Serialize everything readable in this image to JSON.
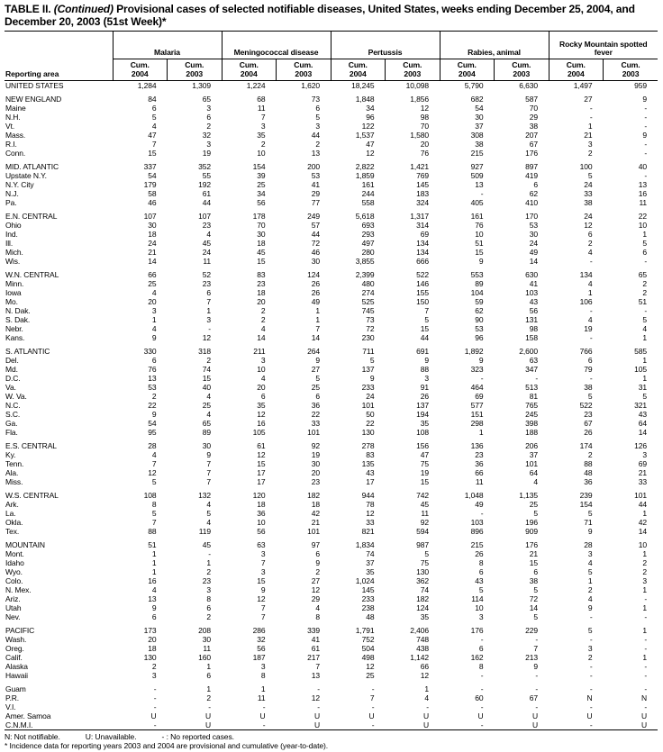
{
  "title": {
    "prefix": "TABLE II. ",
    "continued": "(Continued)",
    "rest": " Provisional cases of selected notifiable diseases, United States, weeks ending December 25, 2004, and December 20, 2003 (51st Week)*"
  },
  "header": {
    "reporting_area": "Reporting area",
    "groups": [
      {
        "label": "Malaria"
      },
      {
        "label": "Meningococcal disease"
      },
      {
        "label": "Pertussis"
      },
      {
        "label": "Rabies, animal"
      },
      {
        "label": "Rocky Mountain spotted fever"
      }
    ],
    "subcolumns": [
      "Cum.\n2004",
      "Cum.\n2003"
    ]
  },
  "table": {
    "sections": [
      {
        "rows": [
          [
            "UNITED STATES",
            "1,284",
            "1,309",
            "1,224",
            "1,620",
            "18,245",
            "10,098",
            "5,790",
            "6,630",
            "1,497",
            "959"
          ]
        ]
      },
      {
        "rows": [
          [
            "NEW ENGLAND",
            "84",
            "65",
            "68",
            "73",
            "1,848",
            "1,856",
            "682",
            "587",
            "27",
            "9"
          ],
          [
            "Maine",
            "6",
            "3",
            "11",
            "6",
            "34",
            "12",
            "54",
            "70",
            "-",
            "-"
          ],
          [
            "N.H.",
            "5",
            "6",
            "7",
            "5",
            "96",
            "98",
            "30",
            "29",
            "-",
            "-"
          ],
          [
            "Vt.",
            "4",
            "2",
            "3",
            "3",
            "122",
            "70",
            "37",
            "38",
            "1",
            "-"
          ],
          [
            "Mass.",
            "47",
            "32",
            "35",
            "44",
            "1,537",
            "1,580",
            "308",
            "207",
            "21",
            "9"
          ],
          [
            "R.I.",
            "7",
            "3",
            "2",
            "2",
            "47",
            "20",
            "38",
            "67",
            "3",
            "-"
          ],
          [
            "Conn.",
            "15",
            "19",
            "10",
            "13",
            "12",
            "76",
            "215",
            "176",
            "2",
            "-"
          ]
        ]
      },
      {
        "rows": [
          [
            "MID. ATLANTIC",
            "337",
            "352",
            "154",
            "200",
            "2,822",
            "1,421",
            "927",
            "897",
            "100",
            "40"
          ],
          [
            "Upstate N.Y.",
            "54",
            "55",
            "39",
            "53",
            "1,859",
            "769",
            "509",
            "419",
            "5",
            "-"
          ],
          [
            "N.Y. City",
            "179",
            "192",
            "25",
            "41",
            "161",
            "145",
            "13",
            "6",
            "24",
            "13"
          ],
          [
            "N.J.",
            "58",
            "61",
            "34",
            "29",
            "244",
            "183",
            "-",
            "62",
            "33",
            "16"
          ],
          [
            "Pa.",
            "46",
            "44",
            "56",
            "77",
            "558",
            "324",
            "405",
            "410",
            "38",
            "11"
          ]
        ]
      },
      {
        "rows": [
          [
            "E.N. CENTRAL",
            "107",
            "107",
            "178",
            "249",
            "5,618",
            "1,317",
            "161",
            "170",
            "24",
            "22"
          ],
          [
            "Ohio",
            "30",
            "23",
            "70",
            "57",
            "693",
            "314",
            "76",
            "53",
            "12",
            "10"
          ],
          [
            "Ind.",
            "18",
            "4",
            "30",
            "44",
            "293",
            "69",
            "10",
            "30",
            "6",
            "1"
          ],
          [
            "Ill.",
            "24",
            "45",
            "18",
            "72",
            "497",
            "134",
            "51",
            "24",
            "2",
            "5"
          ],
          [
            "Mich.",
            "21",
            "24",
            "45",
            "46",
            "280",
            "134",
            "15",
            "49",
            "4",
            "6"
          ],
          [
            "Wis.",
            "14",
            "11",
            "15",
            "30",
            "3,855",
            "666",
            "9",
            "14",
            "-",
            "-"
          ]
        ]
      },
      {
        "rows": [
          [
            "W.N. CENTRAL",
            "66",
            "52",
            "83",
            "124",
            "2,399",
            "522",
            "553",
            "630",
            "134",
            "65"
          ],
          [
            "Minn.",
            "25",
            "23",
            "23",
            "26",
            "480",
            "146",
            "89",
            "41",
            "4",
            "2"
          ],
          [
            "Iowa",
            "4",
            "6",
            "18",
            "26",
            "274",
            "155",
            "104",
            "103",
            "1",
            "2"
          ],
          [
            "Mo.",
            "20",
            "7",
            "20",
            "49",
            "525",
            "150",
            "59",
            "43",
            "106",
            "51"
          ],
          [
            "N. Dak.",
            "3",
            "1",
            "2",
            "1",
            "745",
            "7",
            "62",
            "56",
            "-",
            "-"
          ],
          [
            "S. Dak.",
            "1",
            "3",
            "2",
            "1",
            "73",
            "5",
            "90",
            "131",
            "4",
            "5"
          ],
          [
            "Nebr.",
            "4",
            "-",
            "4",
            "7",
            "72",
            "15",
            "53",
            "98",
            "19",
            "4"
          ],
          [
            "Kans.",
            "9",
            "12",
            "14",
            "14",
            "230",
            "44",
            "96",
            "158",
            "-",
            "1"
          ]
        ]
      },
      {
        "rows": [
          [
            "S. ATLANTIC",
            "330",
            "318",
            "211",
            "264",
            "711",
            "691",
            "1,892",
            "2,600",
            "766",
            "585"
          ],
          [
            "Del.",
            "6",
            "2",
            "3",
            "9",
            "5",
            "9",
            "9",
            "63",
            "6",
            "1"
          ],
          [
            "Md.",
            "76",
            "74",
            "10",
            "27",
            "137",
            "88",
            "323",
            "347",
            "79",
            "105"
          ],
          [
            "D.C.",
            "13",
            "15",
            "4",
            "5",
            "9",
            "3",
            "-",
            "-",
            "-",
            "1"
          ],
          [
            "Va.",
            "53",
            "40",
            "20",
            "25",
            "233",
            "91",
            "464",
            "513",
            "38",
            "31"
          ],
          [
            "W. Va.",
            "2",
            "4",
            "6",
            "6",
            "24",
            "26",
            "69",
            "81",
            "5",
            "5"
          ],
          [
            "N.C.",
            "22",
            "25",
            "35",
            "36",
            "101",
            "137",
            "577",
            "765",
            "522",
            "321"
          ],
          [
            "S.C.",
            "9",
            "4",
            "12",
            "22",
            "50",
            "194",
            "151",
            "245",
            "23",
            "43"
          ],
          [
            "Ga.",
            "54",
            "65",
            "16",
            "33",
            "22",
            "35",
            "298",
            "398",
            "67",
            "64"
          ],
          [
            "Fla.",
            "95",
            "89",
            "105",
            "101",
            "130",
            "108",
            "1",
            "188",
            "26",
            "14"
          ]
        ]
      },
      {
        "rows": [
          [
            "E.S. CENTRAL",
            "28",
            "30",
            "61",
            "92",
            "278",
            "156",
            "136",
            "206",
            "174",
            "126"
          ],
          [
            "Ky.",
            "4",
            "9",
            "12",
            "19",
            "83",
            "47",
            "23",
            "37",
            "2",
            "3"
          ],
          [
            "Tenn.",
            "7",
            "7",
            "15",
            "30",
            "135",
            "75",
            "36",
            "101",
            "88",
            "69"
          ],
          [
            "Ala.",
            "12",
            "7",
            "17",
            "20",
            "43",
            "19",
            "66",
            "64",
            "48",
            "21"
          ],
          [
            "Miss.",
            "5",
            "7",
            "17",
            "23",
            "17",
            "15",
            "11",
            "4",
            "36",
            "33"
          ]
        ]
      },
      {
        "rows": [
          [
            "W.S. CENTRAL",
            "108",
            "132",
            "120",
            "182",
            "944",
            "742",
            "1,048",
            "1,135",
            "239",
            "101"
          ],
          [
            "Ark.",
            "8",
            "4",
            "18",
            "18",
            "78",
            "45",
            "49",
            "25",
            "154",
            "44"
          ],
          [
            "La.",
            "5",
            "5",
            "36",
            "42",
            "12",
            "11",
            "-",
            "5",
            "5",
            "1"
          ],
          [
            "Okla.",
            "7",
            "4",
            "10",
            "21",
            "33",
            "92",
            "103",
            "196",
            "71",
            "42"
          ],
          [
            "Tex.",
            "88",
            "119",
            "56",
            "101",
            "821",
            "594",
            "896",
            "909",
            "9",
            "14"
          ]
        ]
      },
      {
        "rows": [
          [
            "MOUNTAIN",
            "51",
            "45",
            "63",
            "97",
            "1,834",
            "987",
            "215",
            "176",
            "28",
            "10"
          ],
          [
            "Mont.",
            "1",
            "-",
            "3",
            "6",
            "74",
            "5",
            "26",
            "21",
            "3",
            "1"
          ],
          [
            "Idaho",
            "1",
            "1",
            "7",
            "9",
            "37",
            "75",
            "8",
            "15",
            "4",
            "2"
          ],
          [
            "Wyo.",
            "1",
            "2",
            "3",
            "2",
            "35",
            "130",
            "6",
            "6",
            "5",
            "2"
          ],
          [
            "Colo.",
            "16",
            "23",
            "15",
            "27",
            "1,024",
            "362",
            "43",
            "38",
            "1",
            "3"
          ],
          [
            "N. Mex.",
            "4",
            "3",
            "9",
            "12",
            "145",
            "74",
            "5",
            "5",
            "2",
            "1"
          ],
          [
            "Ariz.",
            "13",
            "8",
            "12",
            "29",
            "233",
            "182",
            "114",
            "72",
            "4",
            "-"
          ],
          [
            "Utah",
            "9",
            "6",
            "7",
            "4",
            "238",
            "124",
            "10",
            "14",
            "9",
            "1"
          ],
          [
            "Nev.",
            "6",
            "2",
            "7",
            "8",
            "48",
            "35",
            "3",
            "5",
            "-",
            "-"
          ]
        ]
      },
      {
        "rows": [
          [
            "PACIFIC",
            "173",
            "208",
            "286",
            "339",
            "1,791",
            "2,406",
            "176",
            "229",
            "5",
            "1"
          ],
          [
            "Wash.",
            "20",
            "30",
            "32",
            "41",
            "752",
            "748",
            "-",
            "-",
            "-",
            "-"
          ],
          [
            "Oreg.",
            "18",
            "11",
            "56",
            "61",
            "504",
            "438",
            "6",
            "7",
            "3",
            "-"
          ],
          [
            "Calif.",
            "130",
            "160",
            "187",
            "217",
            "498",
            "1,142",
            "162",
            "213",
            "2",
            "1"
          ],
          [
            "Alaska",
            "2",
            "1",
            "3",
            "7",
            "12",
            "66",
            "8",
            "9",
            "-",
            "-"
          ],
          [
            "Hawaii",
            "3",
            "6",
            "8",
            "13",
            "25",
            "12",
            "-",
            "-",
            "-",
            "-"
          ]
        ]
      },
      {
        "rows": [
          [
            "Guam",
            "-",
            "1",
            "1",
            "-",
            "-",
            "1",
            "-",
            "-",
            "-",
            "-"
          ],
          [
            "P.R.",
            "-",
            "2",
            "11",
            "12",
            "7",
            "4",
            "60",
            "67",
            "N",
            "N"
          ],
          [
            "V.I.",
            "-",
            "-",
            "-",
            "-",
            "-",
            "-",
            "-",
            "-",
            "-",
            "-"
          ],
          [
            "Amer. Samoa",
            "U",
            "U",
            "U",
            "U",
            "U",
            "U",
            "U",
            "U",
            "U",
            "U"
          ],
          [
            "C.N.M.I.",
            "-",
            "U",
            "-",
            "U",
            "-",
            "U",
            "-",
            "U",
            "-",
            "U"
          ]
        ]
      }
    ]
  },
  "footnotes": {
    "legend": [
      "N: Not notifiable.",
      "U: Unavailable.",
      "- : No reported cases."
    ],
    "note": "* Incidence data for reporting years 2003 and 2004 are provisional and cumulative (year-to-date)."
  }
}
